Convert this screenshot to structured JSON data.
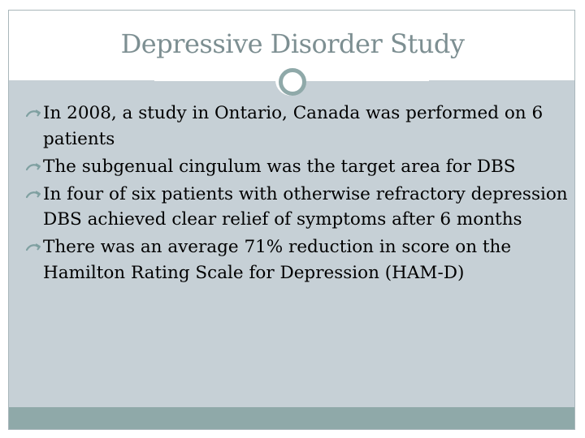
{
  "slide": {
    "title": "Depressive Disorder Study",
    "bullets": [
      {
        "text": "In 2008, a study in Ontario, Canada was performed on 6 patients"
      },
      {
        "text": "The subgenual cingulum was the target area for DBS"
      },
      {
        "text": "In four of six patients with otherwise refractory depression DBS achieved clear relief of symptoms after 6 months"
      },
      {
        "text": "There was an average 71% reduction in score on the Hamilton Rating Scale for Depression (HAM-D)"
      }
    ]
  },
  "colors": {
    "title": "#7d8f92",
    "content_background": "#c6d0d6",
    "accent": "#8fa9a9",
    "frame_border": "#a9b7bb",
    "bullet_icon": "#7fa0a1"
  },
  "icons": {
    "bullet": "curved-arrow-bullet-icon",
    "ornament": "circle-ring-icon"
  }
}
